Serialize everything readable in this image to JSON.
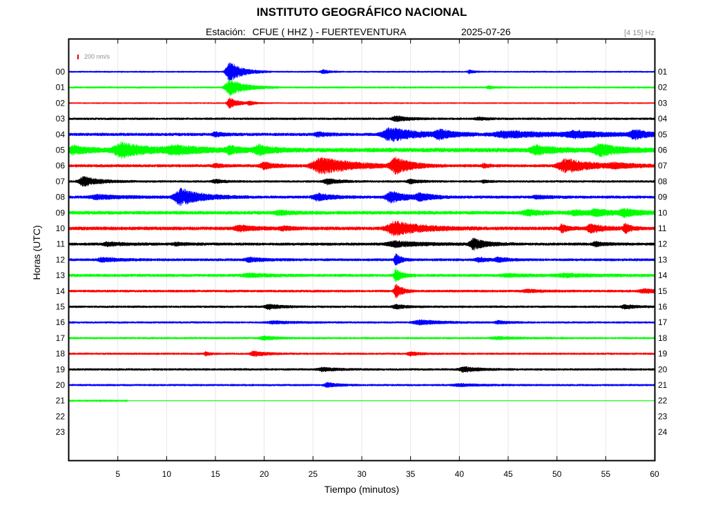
{
  "header": {
    "title": "INSTITUTO GEOGRÁFICO NACIONAL",
    "station_label": "Estación:",
    "station": "CFUE ( HHZ ) - FUERTEVENTURA",
    "date": "2025-07-26",
    "filter": "[4 15] Hz"
  },
  "scale": {
    "label": "200 nm/s"
  },
  "chart_data": {
    "type": "line",
    "title": "INSTITUTO GEOGRÁFICO NACIONAL",
    "xlabel": "Tiempo (minutos)",
    "ylabel": "Horas (UTC)",
    "xlim": [
      0,
      60
    ],
    "xticks": [
      "5",
      "10",
      "15",
      "20",
      "25",
      "30",
      "35",
      "40",
      "45",
      "50",
      "55",
      "60"
    ],
    "left_labels": [
      "00",
      "01",
      "02",
      "03",
      "04",
      "05",
      "06",
      "07",
      "08",
      "09",
      "10",
      "11",
      "12",
      "13",
      "14",
      "15",
      "16",
      "17",
      "18",
      "19",
      "20",
      "21",
      "22",
      "23"
    ],
    "right_labels": [
      "01",
      "02",
      "03",
      "04",
      "05",
      "06",
      "07",
      "08",
      "09",
      "10",
      "11",
      "12",
      "13",
      "14",
      "15",
      "16",
      "17",
      "18",
      "19",
      "20",
      "21",
      "22",
      "23",
      "24"
    ],
    "grid": true,
    "colors": {
      "blue": "#0000ff",
      "green": "#00ff00",
      "red": "#ff0000",
      "black": "#000000"
    },
    "series": [
      {
        "hour": "00",
        "color": "#0000ff",
        "end_min": 60,
        "noise": 0.9,
        "events": [
          [
            16.5,
            14,
            1.2
          ],
          [
            26,
            3,
            0.6
          ],
          [
            41,
            2.5,
            0.5
          ]
        ]
      },
      {
        "hour": "01",
        "color": "#00ff00",
        "end_min": 60,
        "noise": 1.0,
        "events": [
          [
            16.5,
            12,
            1.4
          ],
          [
            43,
            2,
            0.6
          ]
        ]
      },
      {
        "hour": "02",
        "color": "#ff0000",
        "end_min": 60,
        "noise": 0.8,
        "events": [
          [
            16.5,
            8,
            0.8
          ],
          [
            18.5,
            2.5,
            0.6
          ]
        ]
      },
      {
        "hour": "03",
        "color": "#000000",
        "end_min": 60,
        "noise": 1.2,
        "events": [
          [
            33.5,
            4,
            1.2
          ],
          [
            42,
            2,
            1.0
          ]
        ]
      },
      {
        "hour": "04",
        "color": "#0000ff",
        "end_min": 60,
        "noise": 1.6,
        "events": [
          [
            15,
            3,
            0.8
          ],
          [
            25.5,
            3,
            1.0
          ],
          [
            33,
            10,
            2.5
          ],
          [
            38,
            6,
            1.5
          ],
          [
            45,
            5,
            4
          ],
          [
            52,
            4,
            3
          ],
          [
            58,
            6,
            1.5
          ]
        ]
      },
      {
        "hour": "05",
        "color": "#00ff00",
        "end_min": 60,
        "noise": 2.2,
        "events": [
          [
            0.5,
            6,
            1.5
          ],
          [
            5.5,
            10,
            2.5
          ],
          [
            11,
            5,
            3
          ],
          [
            16.5,
            5,
            1.0
          ],
          [
            19.5,
            6,
            1.5
          ],
          [
            48,
            6,
            2
          ],
          [
            54.5,
            8,
            2
          ]
        ]
      },
      {
        "hour": "06",
        "color": "#ff0000",
        "end_min": 60,
        "noise": 1.5,
        "events": [
          [
            15,
            2.5,
            1.0
          ],
          [
            20,
            5,
            1.2
          ],
          [
            26,
            12,
            3
          ],
          [
            33.5,
            11,
            1.5
          ],
          [
            42.5,
            3,
            0.6
          ],
          [
            51,
            10,
            2.5
          ],
          [
            56,
            3,
            2
          ]
        ]
      },
      {
        "hour": "07",
        "color": "#000000",
        "end_min": 60,
        "noise": 1.2,
        "events": [
          [
            1.5,
            7,
            1.5
          ],
          [
            15,
            2.5,
            1.0
          ],
          [
            26.5,
            4,
            1.2
          ],
          [
            35,
            3,
            1.0
          ],
          [
            42.5,
            2,
            0.6
          ]
        ]
      },
      {
        "hour": "08",
        "color": "#0000ff",
        "end_min": 60,
        "noise": 1.5,
        "events": [
          [
            3,
            3,
            2.5
          ],
          [
            11.5,
            12,
            2
          ],
          [
            25.5,
            5,
            1.5
          ],
          [
            33,
            8,
            1.5
          ],
          [
            36,
            5,
            1.2
          ],
          [
            48,
            2,
            1.5
          ]
        ]
      },
      {
        "hour": "09",
        "color": "#00ff00",
        "end_min": 60,
        "noise": 1.8,
        "events": [
          [
            21.5,
            3,
            1.2
          ],
          [
            47,
            4,
            1.5
          ],
          [
            52,
            3,
            2
          ],
          [
            54,
            4,
            1.5
          ],
          [
            57,
            5,
            1.5
          ]
        ]
      },
      {
        "hour": "10",
        "color": "#ff0000",
        "end_min": 60,
        "noise": 1.8,
        "events": [
          [
            17.5,
            4,
            1.5
          ],
          [
            22,
            2.5,
            1.0
          ],
          [
            33.5,
            10,
            2.5
          ],
          [
            50.5,
            6,
            0.6
          ],
          [
            53.5,
            6,
            1.2
          ],
          [
            57,
            7,
            0.6
          ]
        ]
      },
      {
        "hour": "11",
        "color": "#000000",
        "end_min": 60,
        "noise": 1.5,
        "events": [
          [
            4,
            2.5,
            1.5
          ],
          [
            11,
            2,
            1.0
          ],
          [
            33.5,
            4,
            2.5
          ],
          [
            41.5,
            8,
            1.2
          ],
          [
            54,
            3,
            1.0
          ]
        ]
      },
      {
        "hour": "12",
        "color": "#0000ff",
        "end_min": 60,
        "noise": 1.4,
        "events": [
          [
            3.5,
            3,
            1.5
          ],
          [
            18.5,
            3,
            1.5
          ],
          [
            33.5,
            9,
            0.5
          ],
          [
            42,
            3,
            1.0
          ],
          [
            44,
            3,
            1.0
          ]
        ]
      },
      {
        "hour": "13",
        "color": "#00ff00",
        "end_min": 60,
        "noise": 1.5,
        "events": [
          [
            18.5,
            2.5,
            2
          ],
          [
            33.5,
            9,
            0.6
          ],
          [
            45,
            2,
            2
          ],
          [
            51,
            2,
            3
          ]
        ]
      },
      {
        "hour": "14",
        "color": "#ff0000",
        "end_min": 60,
        "noise": 1.3,
        "events": [
          [
            33.5,
            11,
            0.6
          ],
          [
            47,
            2,
            1.5
          ],
          [
            59,
            3,
            1.5
          ]
        ]
      },
      {
        "hour": "15",
        "color": "#000000",
        "end_min": 60,
        "noise": 1.2,
        "events": [
          [
            20.5,
            3.5,
            1.2
          ],
          [
            33.5,
            3,
            1.0
          ],
          [
            57,
            3,
            1.0
          ]
        ]
      },
      {
        "hour": "16",
        "color": "#0000ff",
        "end_min": 60,
        "noise": 1.1,
        "events": [
          [
            21,
            2,
            2
          ],
          [
            36,
            3.5,
            2
          ],
          [
            44,
            2.5,
            1.0
          ]
        ]
      },
      {
        "hour": "17",
        "color": "#00ff00",
        "end_min": 60,
        "noise": 1.1,
        "events": [
          [
            20,
            3,
            1.2
          ],
          [
            44,
            1.8,
            2
          ]
        ]
      },
      {
        "hour": "18",
        "color": "#ff0000",
        "end_min": 60,
        "noise": 1.1,
        "events": [
          [
            14,
            3,
            0.4
          ],
          [
            19,
            3.5,
            1.2
          ],
          [
            35,
            2.5,
            1.0
          ]
        ]
      },
      {
        "hour": "19",
        "color": "#000000",
        "end_min": 60,
        "noise": 1.2,
        "events": [
          [
            26,
            2.5,
            1.5
          ],
          [
            40.5,
            3.5,
            1.5
          ]
        ]
      },
      {
        "hour": "20",
        "color": "#0000ff",
        "end_min": 60,
        "noise": 1.1,
        "events": [
          [
            26.5,
            3.5,
            1.0
          ],
          [
            40,
            1.8,
            2
          ]
        ]
      },
      {
        "hour": "21",
        "color": "#00ff00",
        "end_min": 6,
        "noise": 1.0,
        "events": []
      }
    ]
  }
}
